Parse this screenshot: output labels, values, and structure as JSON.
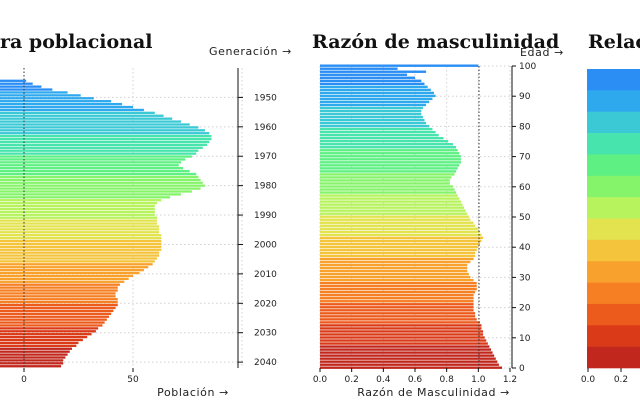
{
  "chart_data": [
    {
      "type": "bar",
      "orientation": "horizontal",
      "title": "ra poblacional",
      "xlabel": "Población →",
      "ylabel": "Generación →",
      "x_ticks": [
        "0",
        "50"
      ],
      "y_ticks": [
        "1950",
        "1960",
        "1970",
        "1980",
        "1990",
        "2000",
        "2010",
        "2020",
        "2030",
        "2040"
      ],
      "generations": [
        1940,
        1941,
        1942,
        1943,
        1944,
        1945,
        1946,
        1947,
        1948,
        1949,
        1950,
        1951,
        1952,
        1953,
        1954,
        1955,
        1956,
        1957,
        1958,
        1959,
        1960,
        1961,
        1962,
        1963,
        1964,
        1965,
        1966,
        1967,
        1968,
        1969,
        1970,
        1971,
        1972,
        1973,
        1974,
        1975,
        1976,
        1977,
        1978,
        1979,
        1980,
        1981,
        1982,
        1983,
        1984,
        1985,
        1986,
        1987,
        1988,
        1989,
        1990,
        1991,
        1992,
        1993,
        1994,
        1995,
        1996,
        1997,
        1998,
        1999,
        2000,
        2001,
        2002,
        2003,
        2004,
        2005,
        2006,
        2007,
        2008,
        2009,
        2010,
        2011,
        2012,
        2013,
        2014,
        2015,
        2016,
        2017,
        2018,
        2019,
        2020,
        2021,
        2022,
        2023,
        2024,
        2025,
        2026,
        2027,
        2028,
        2029,
        2030,
        2031,
        2032,
        2033,
        2034,
        2035,
        2036,
        2037,
        2038,
        2039,
        2040,
        2041,
        2042
      ],
      "values": [
        0,
        0,
        0,
        0,
        1,
        4,
        8,
        13,
        20,
        26,
        32,
        40,
        45,
        50,
        55,
        60,
        64,
        68,
        72,
        76,
        80,
        83,
        85,
        86,
        86,
        85,
        84,
        82,
        80,
        79,
        77,
        74,
        72,
        71,
        73,
        76,
        79,
        80,
        81,
        82,
        83,
        81,
        77,
        72,
        67,
        63,
        61,
        60,
        60,
        60,
        60,
        61,
        61,
        61,
        62,
        62,
        62,
        63,
        63,
        63,
        63,
        63,
        63,
        62,
        62,
        61,
        60,
        59,
        57,
        55,
        53,
        50,
        48,
        46,
        44,
        43,
        43,
        42,
        42,
        43,
        43,
        43,
        42,
        41,
        40,
        39,
        38,
        37,
        36,
        34,
        33,
        31,
        29,
        27,
        25,
        24,
        22,
        21,
        20,
        19,
        18,
        18,
        17
      ]
    },
    {
      "type": "bar",
      "orientation": "horizontal",
      "title": "Razón de masculinidad",
      "xlabel": "Razón de Masculinidad →",
      "ylabel": "Edad →",
      "xlim": [
        0,
        1.2
      ],
      "x_ticks": [
        "0.0",
        "0.2",
        "0.4",
        "0.6",
        "0.8",
        "1.0",
        "1.2"
      ],
      "y_ticks": [
        "0",
        "10",
        "20",
        "30",
        "40",
        "50",
        "60",
        "70",
        "80",
        "90",
        "100"
      ],
      "ages": [
        0,
        1,
        2,
        3,
        4,
        5,
        6,
        7,
        8,
        9,
        10,
        11,
        12,
        13,
        14,
        15,
        16,
        17,
        18,
        19,
        20,
        21,
        22,
        23,
        24,
        25,
        26,
        27,
        28,
        29,
        30,
        31,
        32,
        33,
        34,
        35,
        36,
        37,
        38,
        39,
        40,
        41,
        42,
        43,
        44,
        45,
        46,
        47,
        48,
        49,
        50,
        51,
        52,
        53,
        54,
        55,
        56,
        57,
        58,
        59,
        60,
        61,
        62,
        63,
        64,
        65,
        66,
        67,
        68,
        69,
        70,
        71,
        72,
        73,
        74,
        75,
        76,
        77,
        78,
        79,
        80,
        81,
        82,
        83,
        84,
        85,
        86,
        87,
        88,
        89,
        90,
        91,
        92,
        93,
        94,
        95,
        96,
        97,
        98,
        99,
        100
      ],
      "values": [
        1.15,
        1.13,
        1.12,
        1.11,
        1.1,
        1.09,
        1.08,
        1.07,
        1.06,
        1.05,
        1.04,
        1.03,
        1.03,
        1.02,
        1.02,
        1.01,
        0.99,
        0.98,
        0.98,
        0.97,
        0.97,
        0.97,
        0.97,
        0.97,
        0.97,
        0.98,
        0.99,
        0.99,
        0.99,
        0.97,
        0.95,
        0.94,
        0.93,
        0.93,
        0.93,
        0.95,
        0.97,
        0.98,
        0.98,
        0.99,
        1.0,
        1.01,
        1.02,
        1.03,
        1.02,
        1.01,
        1.0,
        0.98,
        0.97,
        0.95,
        0.94,
        0.93,
        0.92,
        0.91,
        0.9,
        0.89,
        0.88,
        0.87,
        0.86,
        0.85,
        0.84,
        0.82,
        0.82,
        0.83,
        0.85,
        0.86,
        0.87,
        0.88,
        0.89,
        0.89,
        0.89,
        0.88,
        0.87,
        0.86,
        0.84,
        0.81,
        0.78,
        0.75,
        0.73,
        0.71,
        0.69,
        0.67,
        0.66,
        0.65,
        0.64,
        0.64,
        0.65,
        0.67,
        0.69,
        0.71,
        0.73,
        0.72,
        0.7,
        0.68,
        0.66,
        0.64,
        0.6,
        0.55,
        0.67,
        0.49,
        1.0
      ]
    },
    {
      "type": "bar",
      "orientation": "horizontal",
      "title": "Relac",
      "x_ticks": [
        "0.0",
        "0.2"
      ]
    }
  ],
  "palette": [
    "#c1271d",
    "#da3a17",
    "#ec5a1c",
    "#f57f22",
    "#f8a22d",
    "#f4c43d",
    "#e2e34f",
    "#b6f35d",
    "#85f46a",
    "#5ef082",
    "#48e4ad",
    "#3bc9d6",
    "#2fa9ee",
    "#2a8ef5"
  ]
}
